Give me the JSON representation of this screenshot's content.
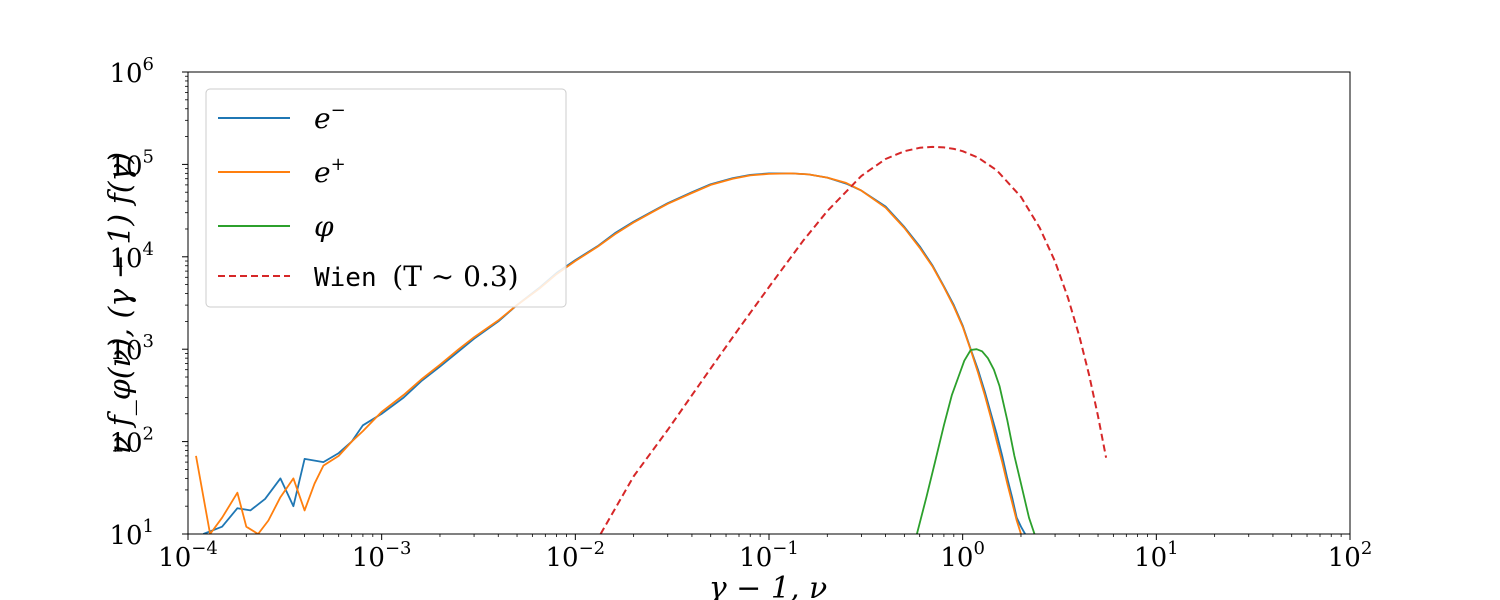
{
  "chart_data": {
    "type": "line",
    "title": "",
    "xlabel": "γ − 1,  ν",
    "ylabel": "ν f_φ(ν),  (γ − 1) f(γ)",
    "xscale": "log",
    "yscale": "log",
    "xlim": [
      0.0001,
      100
    ],
    "ylim": [
      10,
      1000000
    ],
    "grid": false,
    "legend_position": "top-left",
    "x_ticks": [
      {
        "value": 0.0001,
        "base": "10",
        "exp": "−4"
      },
      {
        "value": 0.001,
        "base": "10",
        "exp": "−3"
      },
      {
        "value": 0.01,
        "base": "10",
        "exp": "−2"
      },
      {
        "value": 0.1,
        "base": "10",
        "exp": "−1"
      },
      {
        "value": 1,
        "base": "10",
        "exp": "0"
      },
      {
        "value": 10,
        "base": "10",
        "exp": "1"
      },
      {
        "value": 100,
        "base": "10",
        "exp": "2"
      }
    ],
    "y_ticks": [
      {
        "value": 10,
        "base": "10",
        "exp": "1"
      },
      {
        "value": 100,
        "base": "10",
        "exp": "2"
      },
      {
        "value": 1000,
        "base": "10",
        "exp": "3"
      },
      {
        "value": 10000,
        "base": "10",
        "exp": "4"
      },
      {
        "value": 100000,
        "base": "10",
        "exp": "5"
      },
      {
        "value": 1000000,
        "base": "10",
        "exp": "6"
      }
    ],
    "series": [
      {
        "name": "e⁻",
        "color": "#1f77b4",
        "dash": "solid",
        "x": [
          0.00012,
          0.00015,
          0.00018,
          0.00021,
          0.00025,
          0.0003,
          0.00035,
          0.0004,
          0.0005,
          0.0006,
          0.0007,
          0.0008,
          0.001,
          0.0013,
          0.0016,
          0.002,
          0.0025,
          0.003,
          0.004,
          0.005,
          0.0065,
          0.008,
          0.01,
          0.013,
          0.016,
          0.02,
          0.025,
          0.03,
          0.04,
          0.05,
          0.065,
          0.08,
          0.1,
          0.13,
          0.16,
          0.2,
          0.25,
          0.3,
          0.4,
          0.5,
          0.6,
          0.7,
          0.8,
          0.9,
          1.0,
          1.1,
          1.2,
          1.3,
          1.4,
          1.5,
          1.6,
          1.7,
          1.8,
          1.9,
          2.0,
          2.1
        ],
        "y": [
          10,
          12,
          19,
          18,
          24,
          40,
          20,
          65,
          60,
          75,
          100,
          150,
          200,
          300,
          450,
          650,
          950,
          1300,
          2000,
          3000,
          4600,
          6700,
          9200,
          13000,
          18000,
          24000,
          31000,
          38000,
          50000,
          61000,
          71000,
          77000,
          80000,
          80000,
          78000,
          72000,
          62000,
          52000,
          35000,
          21000,
          13000,
          8000,
          4800,
          3000,
          1800,
          1000,
          600,
          350,
          200,
          120,
          70,
          40,
          25,
          15,
          12,
          10
        ]
      },
      {
        "name": "e⁺",
        "color": "#ff7f0e",
        "dash": "solid",
        "x": [
          0.00011,
          0.00013,
          0.00015,
          0.00018,
          0.0002,
          0.00023,
          0.00026,
          0.0003,
          0.00035,
          0.0004,
          0.00045,
          0.0005,
          0.0006,
          0.0007,
          0.0008,
          0.001,
          0.0013,
          0.0016,
          0.002,
          0.0025,
          0.003,
          0.004,
          0.005,
          0.0065,
          0.008,
          0.01,
          0.013,
          0.016,
          0.02,
          0.025,
          0.03,
          0.04,
          0.05,
          0.065,
          0.08,
          0.1,
          0.13,
          0.16,
          0.2,
          0.25,
          0.3,
          0.4,
          0.5,
          0.6,
          0.7,
          0.8,
          0.9,
          1.0,
          1.1,
          1.2,
          1.3,
          1.4,
          1.5,
          1.6,
          1.7,
          1.8,
          1.9,
          2.0
        ],
        "y": [
          70,
          10,
          15,
          28,
          12,
          10,
          14,
          25,
          40,
          18,
          35,
          55,
          70,
          100,
          130,
          210,
          320,
          470,
          680,
          1000,
          1350,
          2050,
          3000,
          4500,
          6500,
          9000,
          12800,
          17500,
          23500,
          30500,
          37500,
          49000,
          60000,
          70000,
          76000,
          79000,
          80000,
          78000,
          72000,
          63000,
          52000,
          34000,
          20500,
          12500,
          7800,
          4700,
          2900,
          1750,
          980,
          560,
          320,
          180,
          100,
          60,
          35,
          22,
          14,
          10
        ]
      },
      {
        "name": "φ",
        "color": "#2ca02c",
        "dash": "solid",
        "x": [
          0.58,
          0.65,
          0.72,
          0.8,
          0.88,
          0.95,
          1.02,
          1.1,
          1.18,
          1.26,
          1.35,
          1.45,
          1.55,
          1.7,
          1.85,
          2.0,
          2.2,
          2.35
        ],
        "y": [
          10,
          25,
          60,
          150,
          320,
          500,
          750,
          980,
          1000,
          950,
          800,
          600,
          400,
          170,
          70,
          35,
          15,
          10
        ]
      },
      {
        "name": "Wien (T ∼ 0.3)",
        "color": "#d62728",
        "dash": "dashed",
        "x": [
          0.0135,
          0.02,
          0.03,
          0.05,
          0.07,
          0.1,
          0.15,
          0.2,
          0.3,
          0.4,
          0.5,
          0.6,
          0.7,
          0.8,
          0.9,
          1.0,
          1.2,
          1.5,
          2.0,
          2.5,
          3.0,
          3.5,
          4.0,
          4.5,
          5.0,
          5.5
        ],
        "y": [
          10,
          42,
          134,
          620,
          1680,
          4710,
          14900,
          31200,
          75100,
          114400,
          139000,
          151200,
          154800,
          152800,
          147100,
          139000,
          118500,
          86300,
          44500,
          20600,
          8880,
          3590,
          1390,
          520,
          189,
          67
        ]
      }
    ]
  },
  "legend": {
    "items": [
      {
        "label_main": "e",
        "label_sup": "−",
        "mono": ""
      },
      {
        "label_main": "e",
        "label_sup": "+",
        "mono": ""
      },
      {
        "label_main": "φ",
        "label_sup": "",
        "mono": ""
      },
      {
        "label_main": "(T ∼ 0.3)",
        "label_sup": "",
        "mono": "Wien "
      }
    ]
  }
}
